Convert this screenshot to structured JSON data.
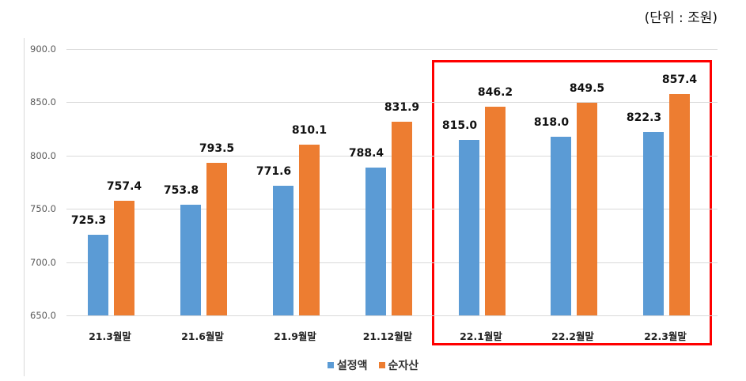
{
  "unit_label": "(단위 : 조원)",
  "colors": {
    "series1": "#5b9bd5",
    "series2": "#ed7d31",
    "highlight": "#ff0000",
    "grid": "#d9d9d9"
  },
  "y_axis": {
    "ticks": [
      "900.0",
      "850.0",
      "800.0",
      "750.0",
      "700.0",
      "650.0"
    ]
  },
  "legend": [
    {
      "label": "설정액",
      "color": "#5b9bd5"
    },
    {
      "label": "순자산",
      "color": "#ed7d31"
    }
  ],
  "chart_data": {
    "type": "bar",
    "title": "",
    "categories": [
      "21.3월말",
      "21.6월말",
      "21.9월말",
      "21.12월말",
      "22.1월말",
      "22.2월말",
      "22.3월말"
    ],
    "series": [
      {
        "name": "설정액",
        "values": [
          725.3,
          753.8,
          771.6,
          788.4,
          815.0,
          818.0,
          822.3
        ],
        "labels": [
          "725.3",
          "753.8",
          "771.6",
          "788.4",
          "815.0",
          "818.0",
          "822.3"
        ]
      },
      {
        "name": "순자산",
        "values": [
          757.4,
          793.5,
          810.1,
          831.9,
          846.2,
          849.5,
          857.4
        ],
        "labels": [
          "757.4",
          "793.5",
          "810.1",
          "831.9",
          "846.2",
          "849.5",
          "857.4"
        ]
      }
    ],
    "xlabel": "",
    "ylabel": "",
    "unit": "조원",
    "ylim": [
      650,
      900
    ],
    "yticks": [
      650,
      700,
      750,
      800,
      850,
      900
    ],
    "grid": true,
    "legend_position": "bottom",
    "annotations": [
      "Red rectangle highlighting 22.1월말–22.3월말"
    ]
  }
}
